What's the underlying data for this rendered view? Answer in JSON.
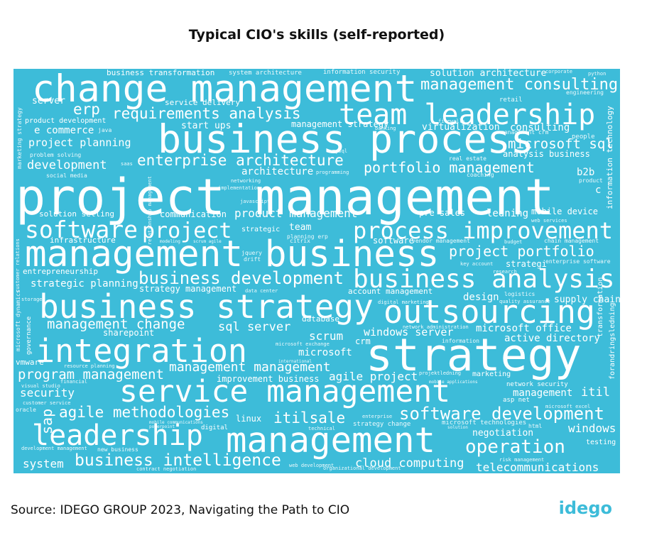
{
  "chart_data": {
    "type": "wordcloud",
    "title": "Typical CIO's skills (self-reported)",
    "background": "#3dbcd9",
    "color": "#ffffff",
    "words": [
      "project management",
      "change management",
      "business process",
      "team leadership",
      "management business",
      "business strategy",
      "outsourcing",
      "business analysis",
      "integration",
      "strategy",
      "service management",
      "leadership",
      "management",
      "operation",
      "process improvement",
      "software",
      "project",
      "project portfolio",
      "business development",
      "management consulting",
      "requirements analysis",
      "erp",
      "enterprise architecture",
      "portfolio management",
      "project planning",
      "development",
      "e commerce",
      "microsoft sql",
      "virtualization",
      "consulting",
      "analysis business",
      "product management",
      "software development",
      "agile methodologies",
      "program management",
      "management management",
      "business intelligence",
      "cloud computing",
      "telecommunications",
      "itilsale",
      "windows",
      "negotiation",
      "security",
      "system",
      "management",
      "itil",
      "sql server",
      "management change",
      "scrum",
      "windows server",
      "microsoft office",
      "active directory",
      "strategic planning",
      "strategy management",
      "account management",
      "design",
      "supply chain",
      "entrepreneurship",
      "infrastructure",
      "solution selling",
      "communication",
      "pre sales",
      "ledning",
      "mobile device",
      "architecture",
      "start ups",
      "management strategy",
      "business transformation",
      "system architecture",
      "information security",
      "solution architecture",
      "server",
      "service delivery",
      "product development",
      "strategi",
      "team",
      "software",
      "strategic",
      "database",
      "crm",
      "microsoft",
      "agile project",
      "sharepoint",
      "improvement business",
      "marketing",
      "b2b",
      "c",
      "sap",
      "vmware",
      "linux",
      "digital",
      "network security",
      "asp net",
      "testing",
      "risk management",
      "information technology",
      "java",
      "social media",
      "problem solving",
      "saas",
      "networking",
      "implementation",
      "javascript",
      "programming",
      "real estate",
      "coaching",
      "retail",
      "people",
      "product",
      "enterprise software",
      "key account",
      "logistics",
      "network administration",
      "microsoft exchange",
      "information",
      "international",
      "resource planning",
      "financial",
      "visual studio",
      "customer service",
      "oracle",
      "mobile communications",
      "powerpoint",
      "development management",
      "new business",
      "contract negotiation",
      "web development",
      "organizational development",
      "strategy change",
      "microsoft technologies",
      "solution",
      "html",
      "enterprise",
      "technical",
      "customer relations",
      "projektledning",
      "mobile applications",
      "microsoft excel",
      "marketing strategy",
      "microsoft dynamics",
      "governance",
      "transformation",
      "forandringsledning",
      "relationship management",
      "data center",
      "jquery",
      "citrix",
      "planning erp",
      "vendor management",
      "budget",
      "chain management",
      "research",
      "modeling",
      "scrum agile",
      "firewalls",
      "banking",
      "mysql",
      "python",
      "corporate",
      "engineering",
      "web services",
      "management crm",
      "storage",
      "drift",
      "digital marketing",
      "quality assurance"
    ],
    "source": "Source: IDEGO GROUP 2023, Navigating the Path to CIO"
  },
  "logo": "idego"
}
